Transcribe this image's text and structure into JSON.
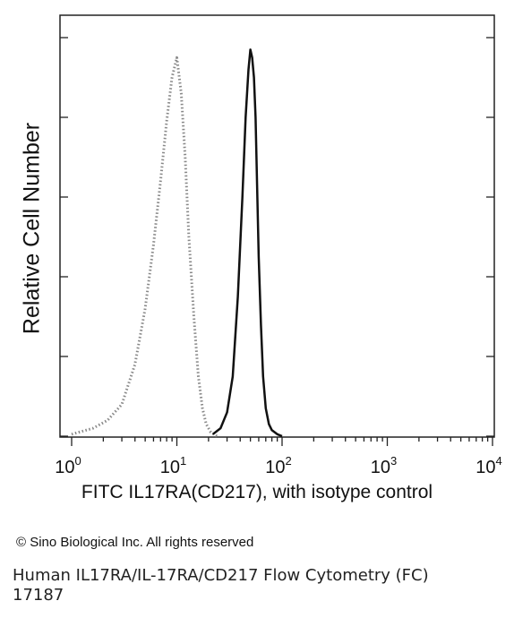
{
  "chart_data": {
    "type": "area",
    "xlabel": "FITC IL17RA(CD217), with isotype control",
    "ylabel": "Relative Cell Number",
    "x_scale": "log",
    "xlim": [
      1,
      10000
    ],
    "ylim": [
      0,
      100
    ],
    "x_ticks": [
      {
        "value": 1,
        "base": "10",
        "exp": "0"
      },
      {
        "value": 10,
        "base": "10",
        "exp": "1"
      },
      {
        "value": 100,
        "base": "10",
        "exp": "2"
      },
      {
        "value": 1000,
        "base": "10",
        "exp": "3"
      },
      {
        "value": 10000,
        "base": "10",
        "exp": "4"
      }
    ],
    "y_ticks": [
      0,
      20,
      40,
      60,
      80,
      100
    ],
    "grid": false,
    "series": [
      {
        "style": "dotted",
        "color": "#888888",
        "x": [
          1.0,
          1.6,
          2.2,
          3.0,
          4.0,
          5.0,
          6.0,
          7.0,
          8.0,
          9.0,
          10.0,
          11.0,
          12.0,
          13.0,
          14.5,
          16.0,
          17.5,
          19.0,
          21.0,
          24.0
        ],
        "y": [
          0.5,
          2,
          4,
          8,
          18,
          32,
          48,
          64,
          79,
          90,
          95,
          86,
          70,
          50,
          30,
          15,
          7,
          3,
          1,
          0
        ]
      },
      {
        "style": "solid",
        "color": "#111111",
        "x": [
          22,
          26,
          30,
          34,
          38,
          42,
          45,
          48,
          50,
          52,
          54,
          56,
          58,
          60,
          63,
          66,
          70,
          75,
          80,
          90,
          100
        ],
        "y": [
          0.5,
          2,
          6,
          15,
          35,
          60,
          80,
          92,
          97,
          95,
          90,
          80,
          62,
          45,
          28,
          15,
          7,
          3,
          1.5,
          0.5,
          0
        ]
      }
    ]
  },
  "copyright": "© Sino Biological Inc. All rights reserved",
  "caption": {
    "line1": "Human IL17RA/IL-17RA/CD217 Flow Cytometry (FC)",
    "line2": "17187"
  }
}
